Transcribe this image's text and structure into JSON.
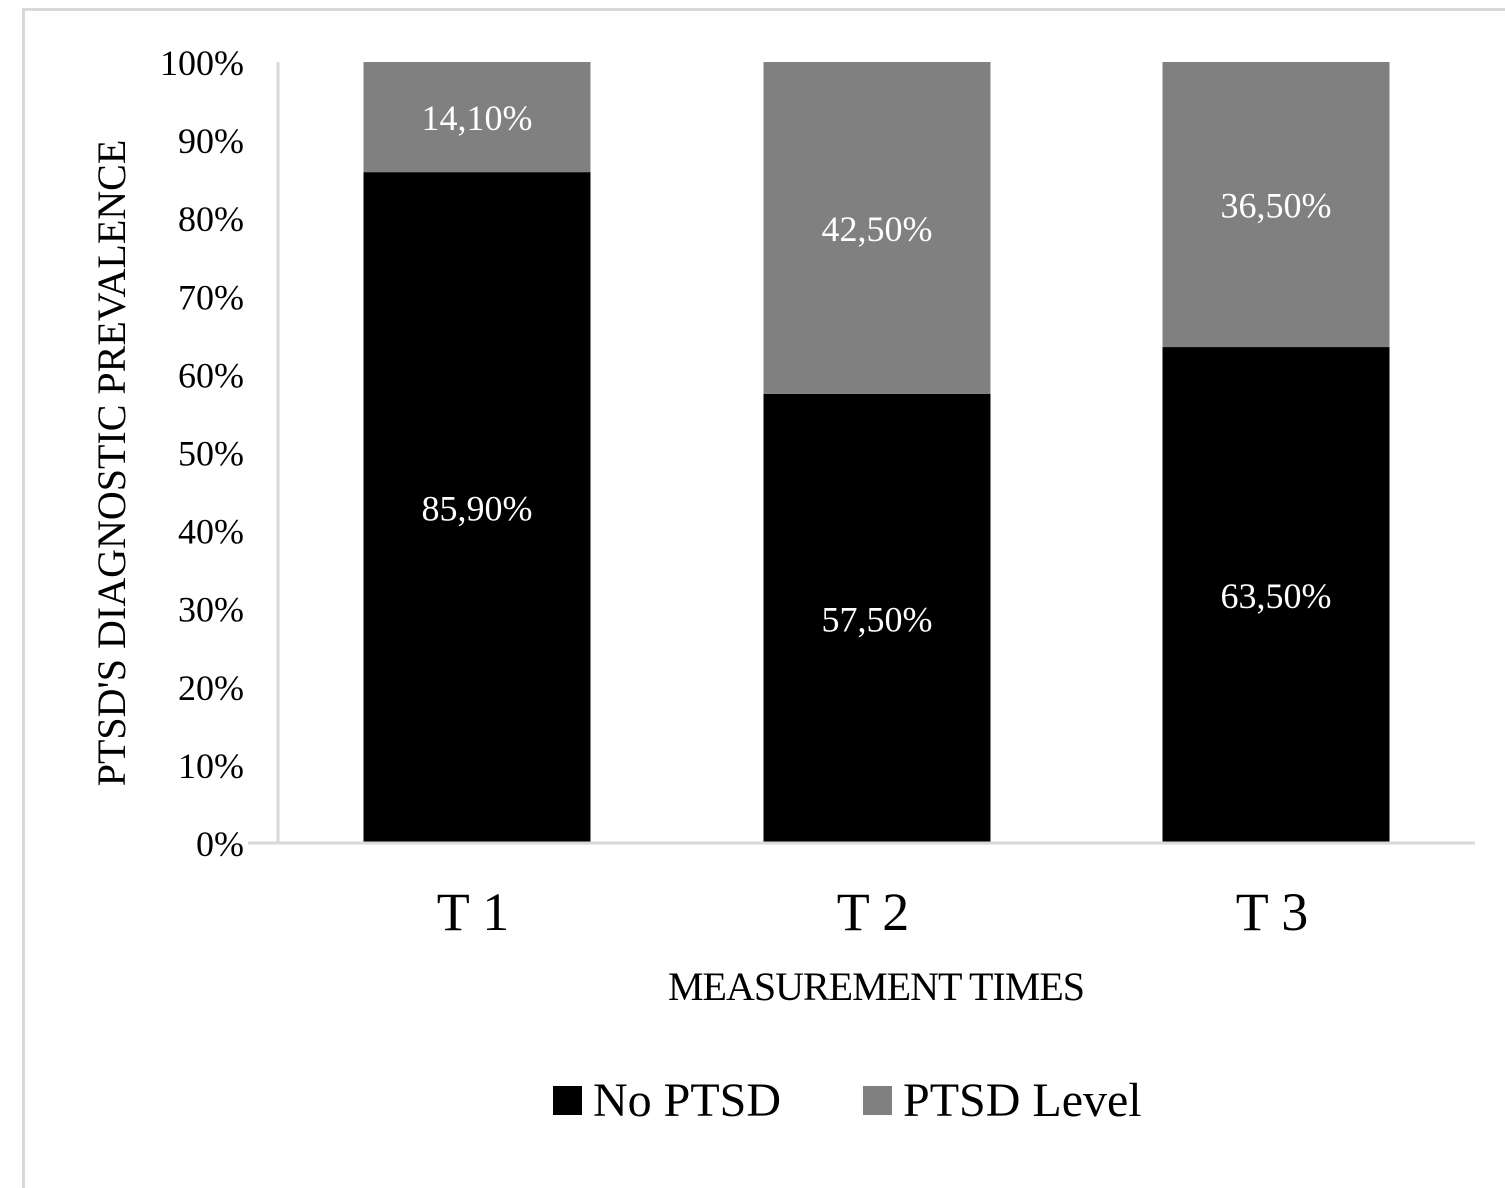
{
  "chart_data": {
    "type": "bar",
    "stacked": true,
    "percent": true,
    "categories": [
      "T1",
      "T2",
      "T3"
    ],
    "series": [
      {
        "name": "No PTSD",
        "values": [
          85.9,
          57.5,
          63.5
        ],
        "labels": [
          "85,90%",
          "57,50%",
          "63,50%"
        ],
        "color": "#000000",
        "label_color": "#ffffff"
      },
      {
        "name": "PTSD Level",
        "values": [
          14.1,
          42.5,
          36.5
        ],
        "labels": [
          "14,10%",
          "42,50%",
          "36,50%"
        ],
        "color": "#808080",
        "label_color": "#ffffff"
      }
    ],
    "title": "",
    "xlabel": "MEASUREMENT  TIMES",
    "ylabel": "PTSD'S DIAGNOSTIC  PREVALENCE",
    "ylim": [
      0,
      100
    ],
    "yticks": [
      0,
      10,
      20,
      30,
      40,
      50,
      60,
      70,
      80,
      90,
      100
    ],
    "ytick_labels": [
      "0%",
      "10%",
      "20%",
      "30%",
      "40%",
      "50%",
      "60%",
      "70%",
      "80%",
      "90%",
      "100%"
    ],
    "xtick_labels": [
      "T 1",
      "T 2",
      "T 3"
    ],
    "grid": false,
    "legend": "bottom",
    "axis_color": "#d9d9d9"
  }
}
